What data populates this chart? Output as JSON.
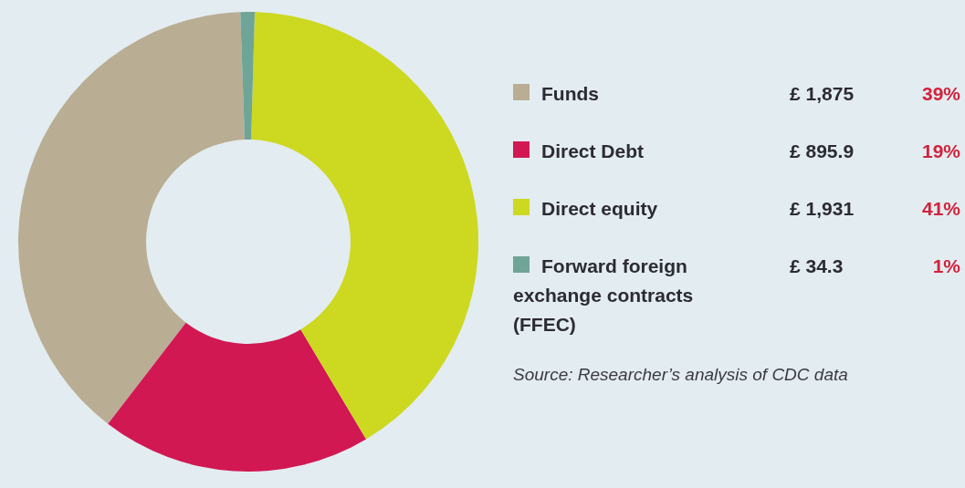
{
  "chart_data": {
    "type": "donut",
    "categories": [
      "Funds",
      "Direct Debt",
      "Direct equity",
      "Forward foreign exchange contracts (FFEC)"
    ],
    "values": [
      39,
      19,
      41,
      1
    ],
    "colors": [
      "#b9ad94",
      "#d11852",
      "#cdd820",
      "#6fa596"
    ],
    "annotations": [
      "£ 1,875",
      "£ 895.9",
      "£ 1,931",
      "£ 34.3",
      "39%",
      "19%",
      "41%",
      "1%",
      "Source: Researcher’s analysis of CDC data"
    ],
    "legend": "right"
  }
}
